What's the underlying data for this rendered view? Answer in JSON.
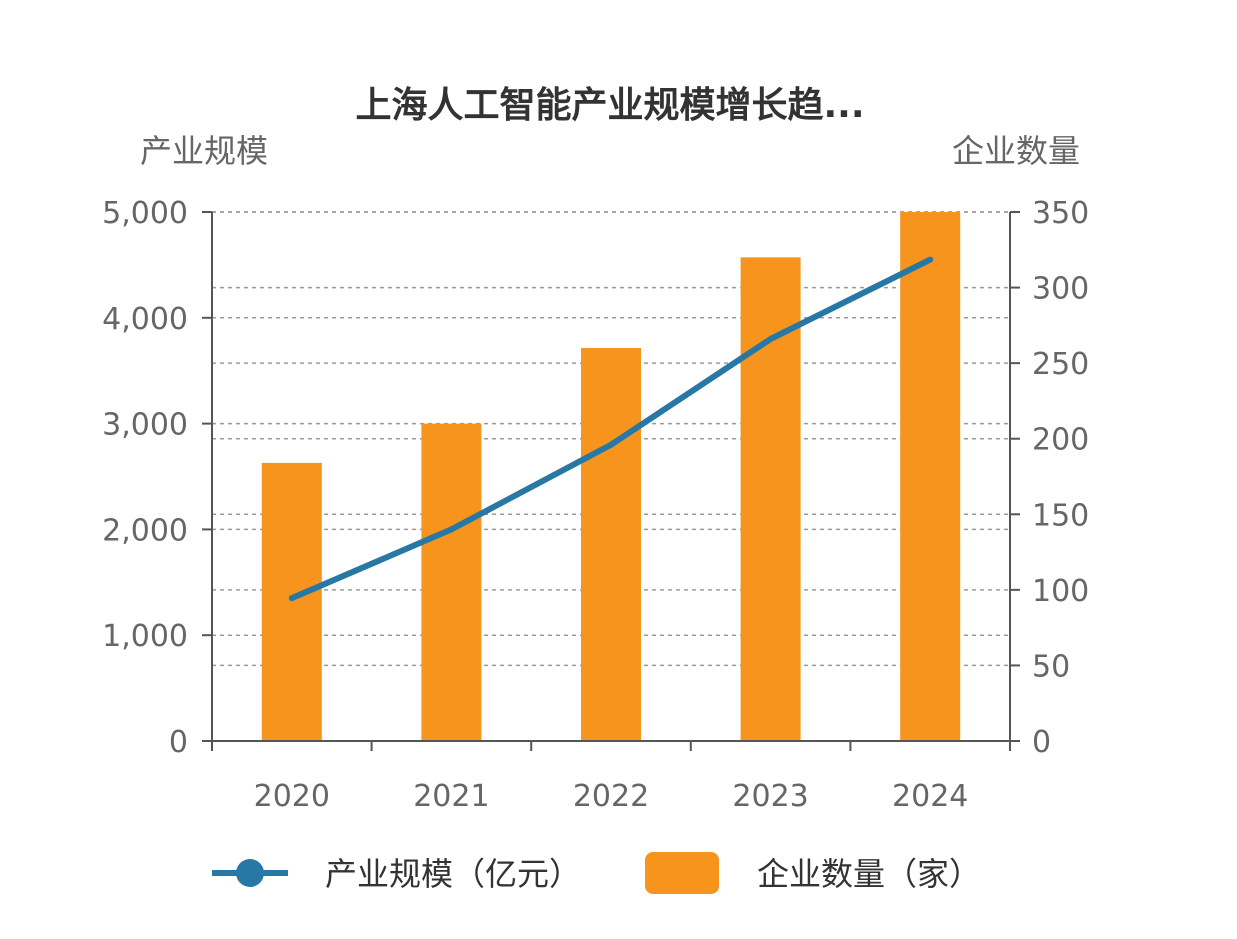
{
  "chart_data": {
    "type": "bar",
    "title": "上海人工智能产业规模增长趋...",
    "categories": [
      "2020",
      "2021",
      "2022",
      "2023",
      "2024"
    ],
    "series": [
      {
        "name": "产业规模（亿元）",
        "type": "line",
        "axis": "left",
        "values": [
          1350,
          2000,
          2800,
          3800,
          4550
        ]
      },
      {
        "name": "企业数量（家）",
        "type": "bar",
        "axis": "right",
        "values": [
          184,
          210,
          260,
          320,
          350
        ]
      }
    ],
    "y_left": {
      "label": "产业规模",
      "range": [
        0,
        5000
      ],
      "ticks": [
        "0",
        "1,000",
        "2,000",
        "3,000",
        "4,000",
        "5,000"
      ],
      "tick_values": [
        0,
        1000,
        2000,
        3000,
        4000,
        5000
      ]
    },
    "y_right": {
      "label": "企业数量",
      "range": [
        0,
        350
      ],
      "ticks": [
        "0",
        "50",
        "100",
        "150",
        "200",
        "250",
        "300",
        "350"
      ],
      "tick_values": [
        0,
        50,
        100,
        150,
        200,
        250,
        300,
        350
      ]
    },
    "grid": true,
    "legend": "bottom",
    "colors": {
      "line": "#2878a6",
      "bar": "#f7941d"
    }
  }
}
